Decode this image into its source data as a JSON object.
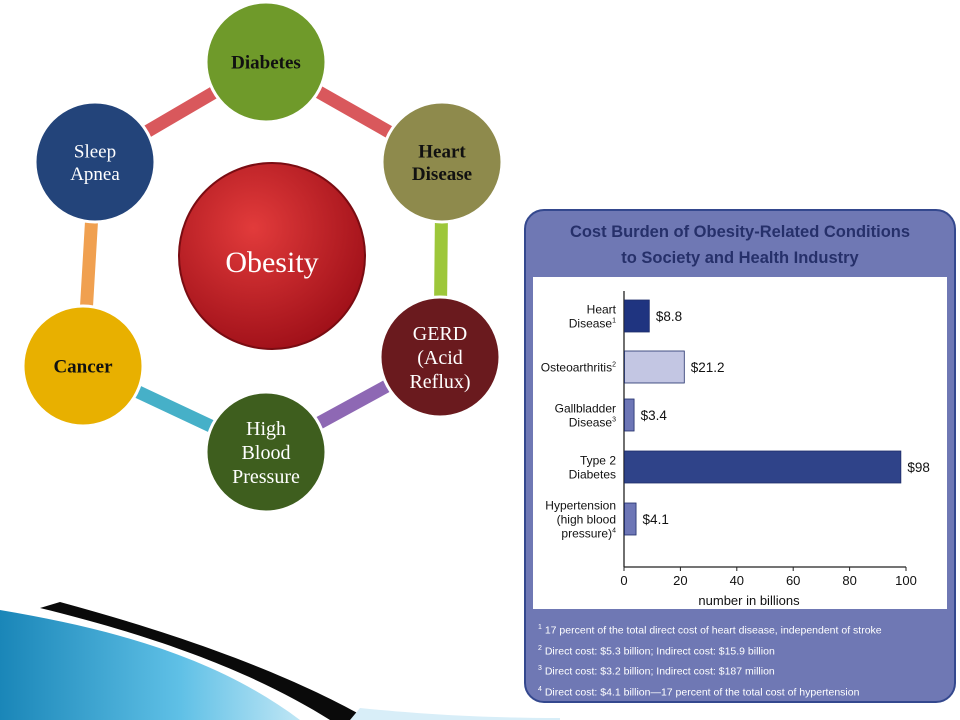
{
  "diagram": {
    "center": {
      "label": "Obesity",
      "color": "#c0121f"
    },
    "nodes": [
      {
        "id": "diabetes",
        "label_lines": [
          "Diabetes"
        ],
        "color": "#6f9a2a",
        "text_color": "dark"
      },
      {
        "id": "heart-disease",
        "label_lines": [
          "Heart",
          "Disease"
        ],
        "color": "#8e8a4c",
        "text_color": "dark"
      },
      {
        "id": "gerd",
        "label_lines": [
          "GERD",
          "(Acid",
          "Reflux)"
        ],
        "color": "#6a1a1e",
        "text_color": "light"
      },
      {
        "id": "high-blood-pressure",
        "label_lines": [
          "High",
          "Blood",
          "Pressure"
        ],
        "color": "#3e5e1e",
        "text_color": "light"
      },
      {
        "id": "cancer",
        "label_lines": [
          "Cancer"
        ],
        "color": "#e8b000",
        "text_color": "dark"
      },
      {
        "id": "sleep-apnea",
        "label_lines": [
          "Sleep",
          "Apnea"
        ],
        "color": "#23447a",
        "text_color": "light"
      }
    ],
    "connector_colors": [
      "#d9585c",
      "#9dc73a",
      "#8e68b4",
      "#46b0c8",
      "#f0a050",
      "#d9585c"
    ]
  },
  "chart_data": {
    "type": "bar",
    "orientation": "horizontal",
    "title": "Cost Burden of Obesity-Related Conditions to Society and Health Industry",
    "title_lines": [
      "Cost Burden of Obesity-Related Conditions",
      "to Society and Health Industry"
    ],
    "categories": [
      {
        "lines": [
          "Heart",
          "Disease"
        ],
        "sup": "1"
      },
      {
        "lines": [
          "Osteoarthritis"
        ],
        "sup": "2"
      },
      {
        "lines": [
          "Gallbladder",
          "Disease"
        ],
        "sup": "3"
      },
      {
        "lines": [
          "Type 2",
          "Diabetes"
        ],
        "sup": ""
      },
      {
        "lines": [
          "Hypertension",
          "(high blood",
          "pressure)"
        ],
        "sup": "4"
      }
    ],
    "values": [
      8.8,
      21.2,
      3.4,
      98,
      4.1
    ],
    "value_labels": [
      "$8.8",
      "$21.2",
      "$3.4",
      "$98",
      "$4.1"
    ],
    "bar_colors": [
      "#1f3480",
      "#c3c6e3",
      "#6d76b6",
      "#2f4389",
      "#6d76b6"
    ],
    "xlabel": "number in billions",
    "ylabel": "",
    "xlim": [
      0,
      100
    ],
    "xticks": [
      0,
      20,
      40,
      60,
      80,
      100
    ],
    "grid": false
  },
  "footnotes": [
    {
      "mark": "1",
      "text": "17 percent of the total direct cost of heart disease, independent of stroke"
    },
    {
      "mark": "2",
      "text": "Direct cost: $5.3 billion; Indirect cost: $15.9 billion"
    },
    {
      "mark": "3",
      "text": "Direct cost: $3.2 billion; Indirect cost: $187 million"
    },
    {
      "mark": "4",
      "text": "Direct cost: $4.1 billion—17 percent of the total cost of hypertension"
    }
  ]
}
